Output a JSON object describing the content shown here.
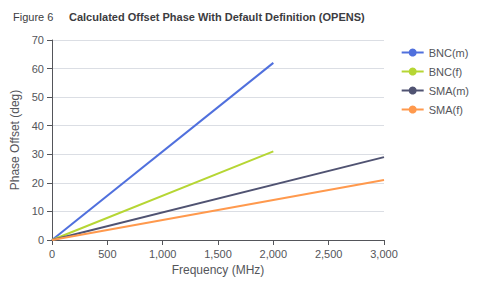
{
  "chart_data": {
    "type": "line",
    "title": "Calculated Offset Phase With Default Definition (OPENS)",
    "annotations": [
      {
        "text": "Figure 6"
      }
    ],
    "xlabel": "Frequency (MHz)",
    "ylabel": "Phase Offset (deg)",
    "xlim": [
      0,
      3000
    ],
    "ylim": [
      0,
      70
    ],
    "xticks": [
      0,
      500,
      {
        "value": 1000,
        "label": "1,000"
      },
      {
        "value": 1500,
        "label": "1,500"
      },
      {
        "value": 2000,
        "label": "2,000"
      },
      {
        "value": 2500,
        "label": "2,500"
      },
      {
        "value": 3000,
        "label": "3,000"
      }
    ],
    "yticks": [
      0,
      10,
      20,
      30,
      40,
      50,
      60,
      70
    ],
    "grid": true,
    "legend": "upper right",
    "series": [
      {
        "name": "BNC(m)",
        "x": [
          0,
          2000
        ],
        "values": [
          0,
          62
        ]
      },
      {
        "name": "BNC(f)",
        "x": [
          0,
          2000
        ],
        "values": [
          0,
          31
        ]
      },
      {
        "name": "SMA(m)",
        "x": [
          0,
          3000
        ],
        "values": [
          0,
          29
        ]
      },
      {
        "name": "SMA(f)",
        "x": [
          0,
          3000
        ],
        "values": [
          0,
          21
        ]
      }
    ]
  }
}
